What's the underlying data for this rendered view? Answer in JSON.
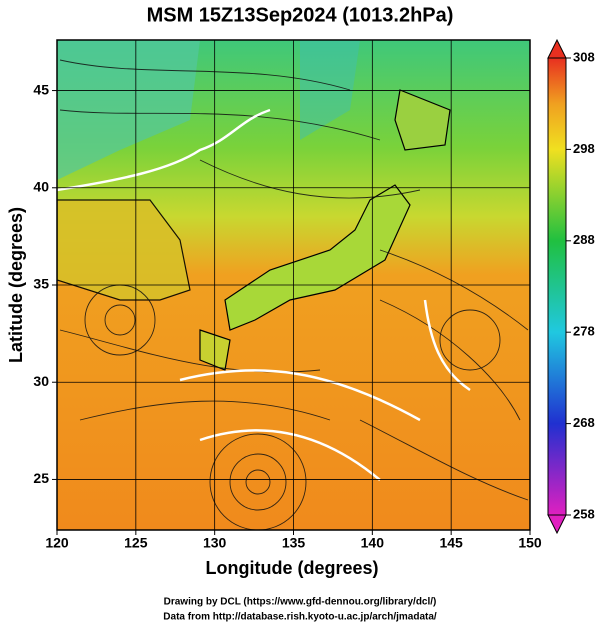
{
  "chart_data": {
    "type": "map",
    "title": "MSM 15Z13Sep2024 (1013.2hPa)",
    "x_label": "Longitude (degrees)",
    "y_label": "Latitude  (degrees)",
    "xlim": [
      120,
      150
    ],
    "xticks": [
      120,
      125,
      130,
      135,
      140,
      145,
      150
    ],
    "ylim": [
      22.4,
      47.6
    ],
    "yticks": [
      25,
      30,
      35,
      40,
      45
    ],
    "grid": true,
    "colorbar": {
      "lim": [
        258,
        308
      ],
      "ticks": [
        258,
        268,
        278,
        288,
        298,
        308
      ]
    },
    "credits": [
      "Drawing by DCL (https://www.gfd-dennou.org/library/dcl/)",
      "Data from http://database.rish.kyoto-u.ac.jp/arch/jmadata/"
    ]
  }
}
